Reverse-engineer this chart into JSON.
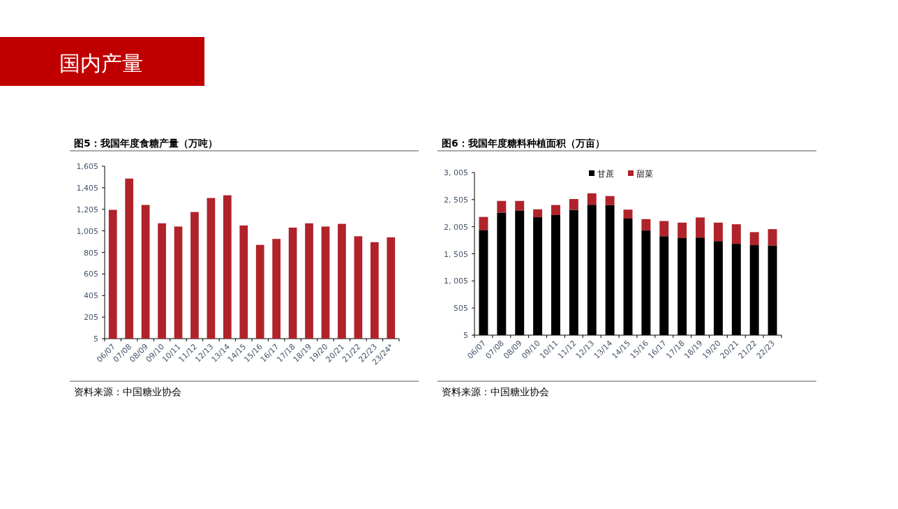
{
  "chart_data": [
    {
      "type": "bar",
      "title": "图5：我国年度食糖产量（万吨）",
      "categories": [
        "06/07",
        "07/08",
        "08/09",
        "09/10",
        "10/11",
        "11/12",
        "12/13",
        "13/14",
        "14/15",
        "15/16",
        "16/17",
        "17/18",
        "18/19",
        "19/20",
        "20/21",
        "21/22",
        "22/23",
        "23/24*"
      ],
      "series": [
        {
          "color": "#b0232a",
          "values": [
            1200,
            1490,
            1245,
            1075,
            1045,
            1180,
            1310,
            1335,
            1055,
            875,
            930,
            1035,
            1075,
            1045,
            1070,
            955,
            900,
            945
          ]
        }
      ],
      "ylim": [
        5,
        1605
      ],
      "yticks": [
        {
          "value": 5,
          "label": "5"
        },
        {
          "value": 205,
          "label": "205"
        },
        {
          "value": 405,
          "label": "405"
        },
        {
          "value": 605,
          "label": "605"
        },
        {
          "value": 805,
          "label": "805"
        },
        {
          "value": 1005,
          "label": "1,005"
        },
        {
          "value": 1205,
          "label": "1,205"
        },
        {
          "value": 1405,
          "label": "1,405"
        },
        {
          "value": 1605,
          "label": "1,605"
        }
      ],
      "legend": false,
      "annotations": [
        "国内产量",
        "资料来源：中国糖业协会"
      ]
    },
    {
      "type": "bar",
      "title": "图6：我国年度糖料种植面积（万亩）",
      "stacked": true,
      "categories": [
        "06/07",
        "07/08",
        "08/09",
        "09/10",
        "10/11",
        "11/12",
        "12/13",
        "13/14",
        "14/15",
        "15/16",
        "16/17",
        "17/18",
        "18/19",
        "19/20",
        "20/21",
        "21/22",
        "22/23"
      ],
      "series": [
        {
          "name": "甘蔗",
          "color": "#000000",
          "values": [
            1940,
            2260,
            2300,
            2175,
            2215,
            2310,
            2405,
            2400,
            2150,
            1930,
            1825,
            1790,
            1800,
            1735,
            1685,
            1660,
            1655
          ]
        },
        {
          "name": "甜菜",
          "color": "#b0232a",
          "values": [
            240,
            215,
            175,
            145,
            185,
            200,
            210,
            165,
            165,
            210,
            280,
            285,
            370,
            340,
            360,
            240,
            300
          ]
        }
      ],
      "ylim": [
        5,
        3005
      ],
      "yticks": [
        {
          "value": 5,
          "label": "5"
        },
        {
          "value": 505,
          "label": "505"
        },
        {
          "value": 1005,
          "label": "1, 005"
        },
        {
          "value": 1505,
          "label": "1, 505"
        },
        {
          "value": 2005,
          "label": "2, 005"
        },
        {
          "value": 2505,
          "label": "2, 505"
        },
        {
          "value": 3005,
          "label": "3, 005"
        }
      ],
      "legend": "top",
      "annotations": [
        "资料来源：中国糖业协会"
      ]
    }
  ]
}
